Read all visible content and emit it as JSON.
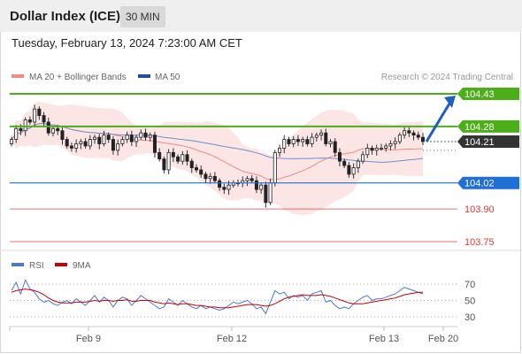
{
  "header": {
    "title": "Dollar Index (ICE)",
    "timeframe": "30 MIN"
  },
  "datetime": "Tuesday, February 13, 2024 7:23:00 AM CET",
  "legend": {
    "ma20_label": "MA 20 + Bollinger Bands",
    "ma50_label": "MA 50",
    "ma20_color": "#f28b82",
    "ma50_color": "#1f4e9c",
    "credit": "Research © 2024 Trading Central"
  },
  "rsi_legend": {
    "rsi_label": "RSI",
    "ma_label": "9MA",
    "rsi_color": "#4a78d6",
    "ma_color": "#cc0000"
  },
  "chart_data": [
    {
      "type": "candlestick",
      "name": "price",
      "x_ticks": [
        "Feb 9",
        "Feb 12",
        "Feb 13",
        "Feb 20"
      ],
      "levels": [
        {
          "value": 104.43,
          "label": "104.43",
          "kind": "resistance",
          "color": "#4caf1a"
        },
        {
          "value": 104.28,
          "label": "104.28",
          "kind": "resistance",
          "color": "#4caf1a"
        },
        {
          "value": 104.21,
          "label": "104.21",
          "kind": "last",
          "color": "#333333"
        },
        {
          "value": 104.02,
          "label": "104.02",
          "kind": "pivot",
          "color": "#1f6fd6"
        },
        {
          "value": 103.9,
          "label": "103.90",
          "kind": "support",
          "color": "#e53935"
        },
        {
          "value": 103.75,
          "label": "103.75",
          "kind": "support",
          "color": "#e53935"
        }
      ],
      "target_arrow": {
        "from": 104.21,
        "to": 104.43
      },
      "ylim": [
        103.71,
        104.51
      ],
      "closes": [
        104.22,
        104.27,
        104.26,
        104.31,
        104.3,
        104.36,
        104.33,
        104.3,
        104.25,
        104.27,
        104.26,
        104.22,
        104.19,
        104.18,
        104.2,
        104.21,
        104.19,
        104.22,
        104.23,
        104.2,
        104.24,
        104.22,
        104.17,
        104.2,
        104.22,
        104.24,
        104.21,
        104.23,
        104.25,
        104.23,
        104.24,
        104.16,
        104.13,
        104.08,
        104.16,
        104.14,
        104.12,
        104.15,
        104.12,
        104.09,
        104.08,
        104.06,
        104.04,
        104.05,
        104.03,
        104.0,
        103.99,
        104.01,
        104.02,
        104.02,
        104.03,
        104.04,
        104.03,
        103.99,
        104.01,
        103.93,
        104.02,
        104.16,
        104.18,
        104.22,
        104.2,
        104.22,
        104.21,
        104.22,
        104.2,
        104.23,
        104.24,
        104.25,
        104.2,
        104.21,
        104.16,
        104.12,
        104.1,
        104.06,
        104.09,
        104.12,
        104.15,
        104.18,
        104.17,
        104.18,
        104.18,
        104.19,
        104.2,
        104.21,
        104.24,
        104.26,
        104.25,
        104.24,
        104.23,
        104.21
      ]
    },
    {
      "type": "line",
      "name": "RSI",
      "yticks": [
        70,
        50,
        30
      ],
      "ylim": [
        20,
        80
      ],
      "series": [
        {
          "name": "RSI",
          "color": "#4a78d6",
          "values": [
            62,
            72,
            58,
            75,
            64,
            60,
            52,
            48,
            50,
            46,
            44,
            48,
            50,
            46,
            52,
            48,
            44,
            50,
            56,
            48,
            54,
            50,
            42,
            50,
            54,
            52,
            44,
            50,
            56,
            52,
            48,
            44,
            40,
            42,
            52,
            48,
            44,
            50,
            46,
            42,
            40,
            44,
            40,
            42,
            40,
            38,
            40,
            44,
            48,
            46,
            48,
            50,
            46,
            40,
            42,
            34,
            48,
            62,
            58,
            60,
            52,
            56,
            54,
            56,
            50,
            58,
            60,
            62,
            48,
            50,
            44,
            40,
            42,
            40,
            46,
            50,
            54,
            56,
            50,
            52,
            52,
            54,
            56,
            58,
            62,
            66,
            64,
            62,
            60,
            58
          ]
        },
        {
          "name": "9MA",
          "color": "#cc0000",
          "values": [
            60,
            62,
            63,
            64,
            63,
            62,
            60,
            57,
            53,
            50,
            48,
            47,
            47,
            47,
            48,
            48,
            48,
            49,
            50,
            49,
            50,
            50,
            49,
            50,
            50,
            51,
            49,
            49,
            50,
            50,
            50,
            48,
            47,
            46,
            47,
            46,
            45,
            46,
            46,
            45,
            44,
            44,
            43,
            42,
            42,
            41,
            41,
            41,
            42,
            43,
            44,
            45,
            45,
            45,
            44,
            43,
            44,
            46,
            49,
            52,
            54,
            55,
            56,
            57,
            56,
            56,
            56,
            57,
            56,
            55,
            53,
            51,
            49,
            47,
            46,
            46,
            46,
            47,
            48,
            49,
            50,
            51,
            52,
            53,
            55,
            57,
            58,
            59,
            60,
            60
          ]
        }
      ]
    }
  ]
}
